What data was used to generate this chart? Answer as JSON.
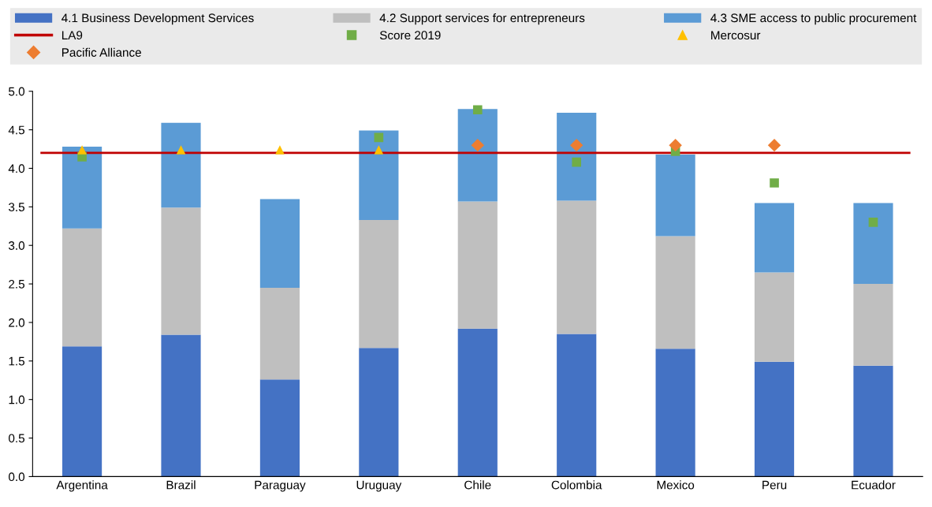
{
  "chart_data": {
    "type": "bar",
    "stacked": true,
    "categories": [
      "Argentina",
      "Brazil",
      "Paraguay",
      "Uruguay",
      "Chile",
      "Colombia",
      "Mexico",
      "Peru",
      "Ecuador"
    ],
    "series": [
      {
        "name": "4.1 Business Development Services",
        "color": "#4472c4",
        "values": [
          1.69,
          1.84,
          1.26,
          1.67,
          1.92,
          1.85,
          1.66,
          1.49,
          1.44
        ]
      },
      {
        "name": "4.2 Support services for entrepreneurs",
        "color": "#bfbfbf",
        "values": [
          1.53,
          1.65,
          1.19,
          1.66,
          1.65,
          1.73,
          1.46,
          1.16,
          1.06
        ]
      },
      {
        "name": "4.3 SME access to public procurement",
        "color": "#5b9bd5",
        "values": [
          1.06,
          1.1,
          1.15,
          1.16,
          1.2,
          1.14,
          1.06,
          0.9,
          1.05
        ]
      },
      {
        "name": "Score 2019",
        "type": "scatter",
        "marker": "square",
        "color": "#70ad47",
        "values": [
          4.15,
          null,
          null,
          4.4,
          4.76,
          4.08,
          4.22,
          3.81,
          3.3
        ]
      },
      {
        "name": "Mercosur",
        "type": "scatter",
        "marker": "triangle",
        "color": "#ffc000",
        "values": [
          4.24,
          4.24,
          4.24,
          4.24,
          null,
          null,
          null,
          null,
          null
        ]
      },
      {
        "name": "Pacific Alliance",
        "type": "scatter",
        "marker": "diamond",
        "color": "#ed7d31",
        "values": [
          null,
          null,
          null,
          null,
          4.3,
          4.3,
          4.3,
          4.3,
          null
        ]
      }
    ],
    "ref_lines": [
      {
        "axis": "y",
        "value": 4.2,
        "label": "LA9",
        "color": "#c00000",
        "line_style": "solid"
      }
    ],
    "ylim": [
      0,
      5
    ],
    "yticks": [
      {
        "value": 0,
        "label": "0.0"
      },
      0.5,
      {
        "value": 1,
        "label": "1.0"
      },
      1.5,
      {
        "value": 2,
        "label": "2.0"
      },
      2.5,
      {
        "value": 3,
        "label": "3.0"
      },
      3.5,
      {
        "value": 4,
        "label": "4.0"
      },
      4.5,
      {
        "value": 5,
        "label": "5.0"
      }
    ],
    "grid": false,
    "legend": "top"
  }
}
